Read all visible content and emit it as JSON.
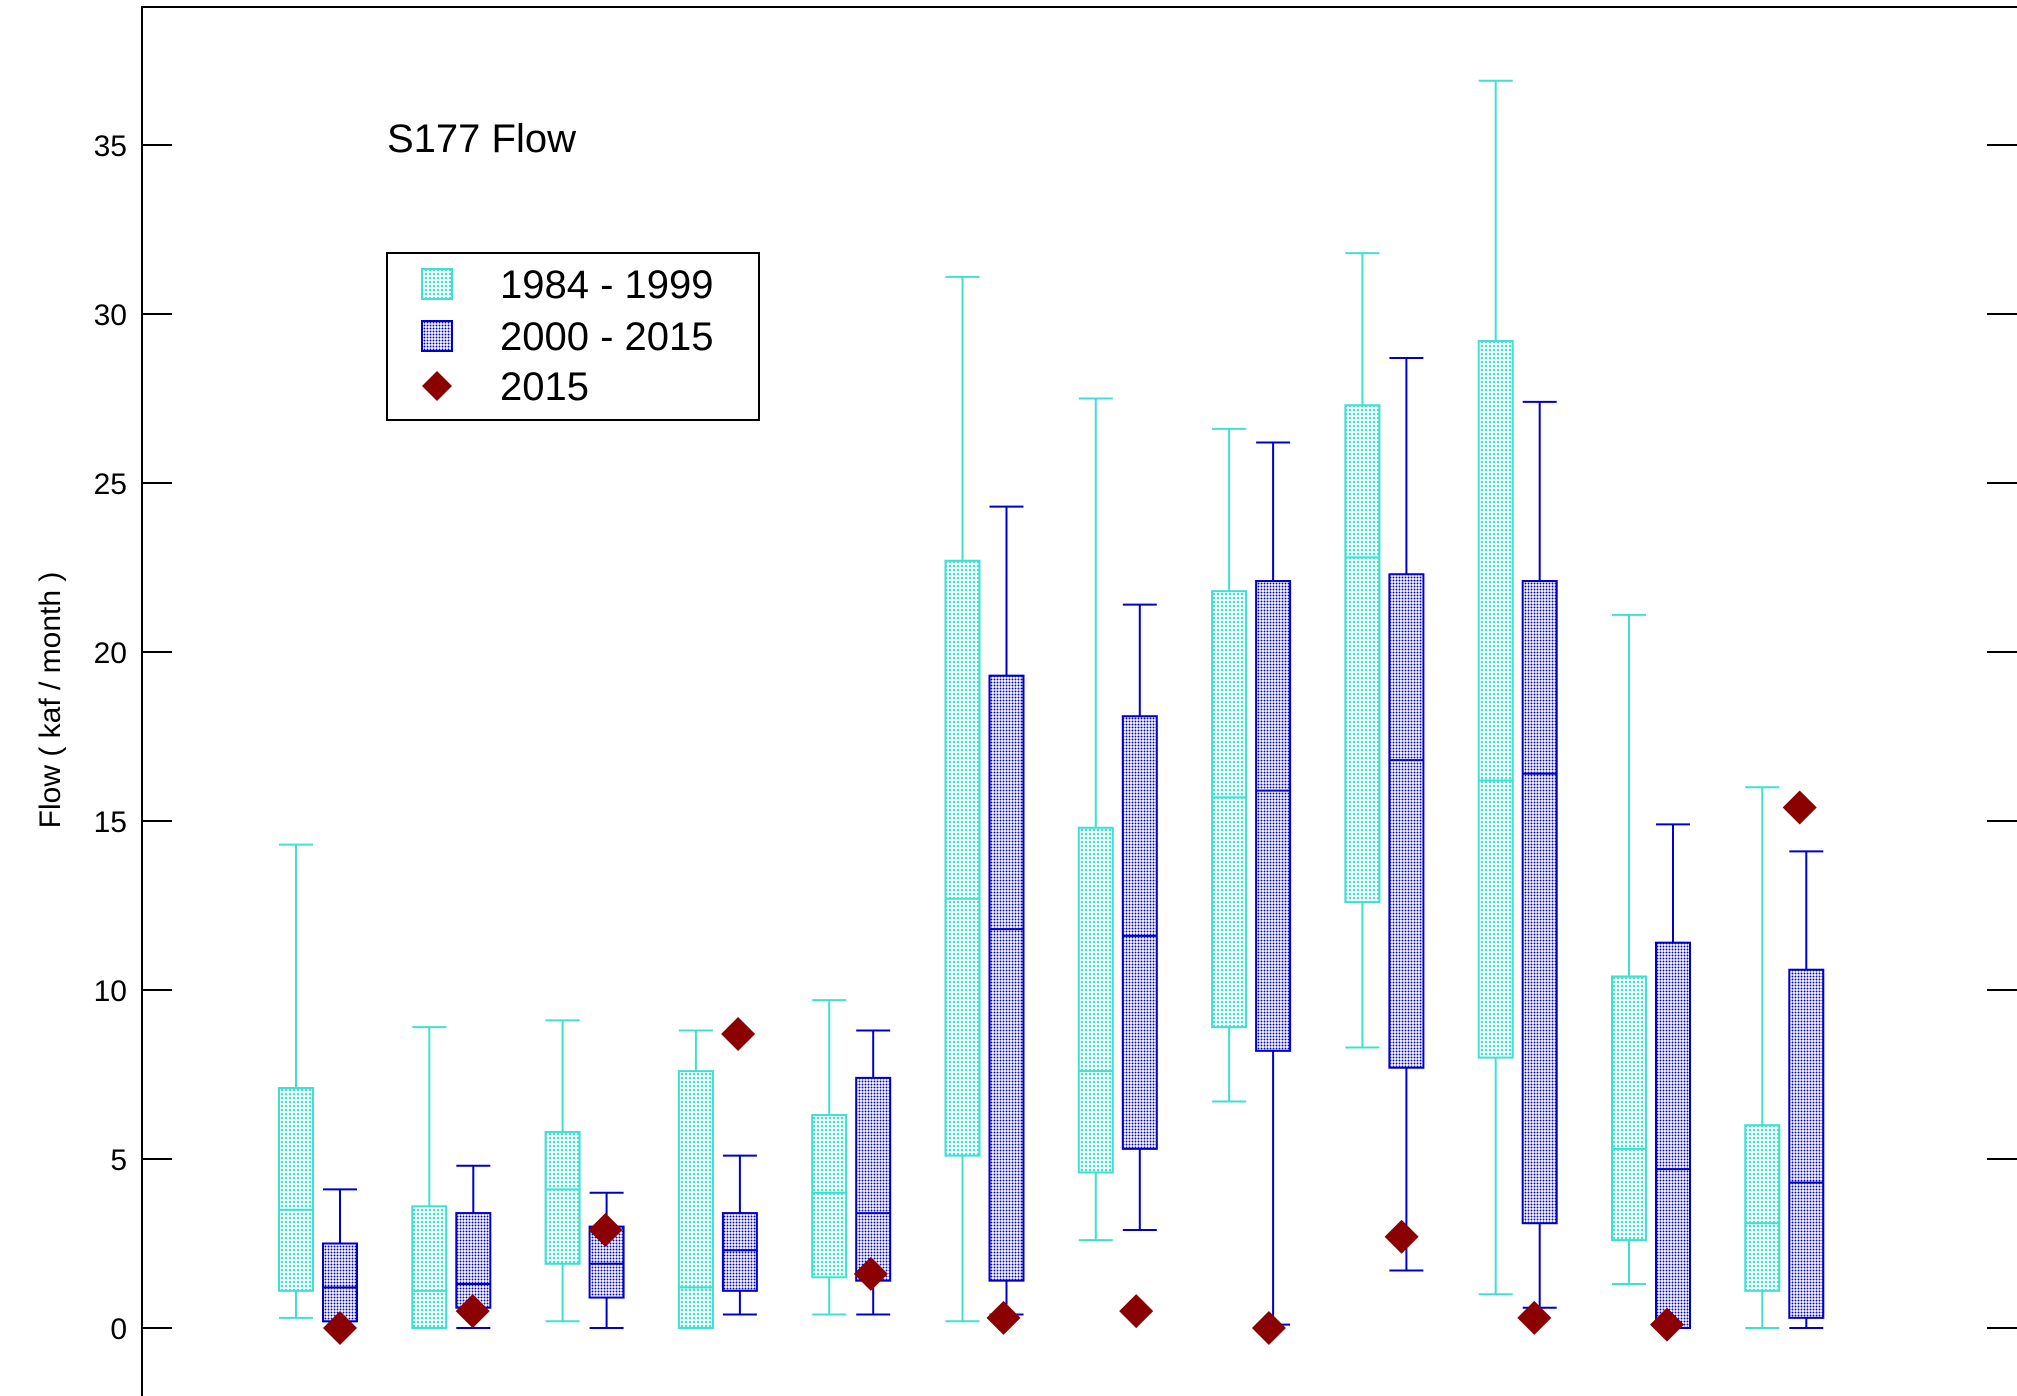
{
  "chart_data": {
    "type": "box",
    "title": "S177 Flow",
    "ylabel": "Flow ( kaf / month )",
    "xlabel": "",
    "ylim": [
      -2,
      39
    ],
    "yticks": [
      0,
      5,
      10,
      15,
      20,
      25,
      30,
      35
    ],
    "grid": false,
    "legend_position": "top-left",
    "colors": {
      "series_1984_1999": "#40e0d0",
      "series_2000_2015": "#0000c8",
      "series_2015": "#8b0000",
      "axis": "#000000"
    },
    "series": [
      {
        "name": "1984 - 1999",
        "kind": "box",
        "boxes": [
          {
            "whisker_low": 0.3,
            "q1": 1.1,
            "median": 3.5,
            "q3": 7.1,
            "whisker_high": 14.3
          },
          {
            "whisker_low": 0.0,
            "q1": 0.0,
            "median": 1.1,
            "q3": 3.6,
            "whisker_high": 8.9
          },
          {
            "whisker_low": 0.2,
            "q1": 1.9,
            "median": 4.1,
            "q3": 5.8,
            "whisker_high": 9.1
          },
          {
            "whisker_low": 0.0,
            "q1": 0.0,
            "median": 1.2,
            "q3": 7.6,
            "whisker_high": 8.8
          },
          {
            "whisker_low": 0.4,
            "q1": 1.5,
            "median": 4.0,
            "q3": 6.3,
            "whisker_high": 9.7
          },
          {
            "whisker_low": 0.2,
            "q1": 5.1,
            "median": 12.7,
            "q3": 22.7,
            "whisker_high": 31.1
          },
          {
            "whisker_low": 2.6,
            "q1": 4.6,
            "median": 7.6,
            "q3": 14.8,
            "whisker_high": 27.5
          },
          {
            "whisker_low": 6.7,
            "q1": 8.9,
            "median": 15.7,
            "q3": 21.8,
            "whisker_high": 26.6
          },
          {
            "whisker_low": 8.3,
            "q1": 12.6,
            "median": 22.8,
            "q3": 27.3,
            "whisker_high": 31.8
          },
          {
            "whisker_low": 1.0,
            "q1": 8.0,
            "median": 16.2,
            "q3": 29.2,
            "whisker_high": 36.9
          },
          {
            "whisker_low": 1.3,
            "q1": 2.6,
            "median": 5.3,
            "q3": 10.4,
            "whisker_high": 21.1
          },
          {
            "whisker_low": 0.0,
            "q1": 1.1,
            "median": 3.1,
            "q3": 6.0,
            "whisker_high": 16.0
          }
        ]
      },
      {
        "name": "2000 - 2015",
        "kind": "box",
        "boxes": [
          {
            "whisker_low": 0.2,
            "q1": 0.2,
            "median": 1.2,
            "q3": 2.5,
            "whisker_high": 4.1
          },
          {
            "whisker_low": 0.0,
            "q1": 0.6,
            "median": 1.3,
            "q3": 3.4,
            "whisker_high": 4.8
          },
          {
            "whisker_low": 0.0,
            "q1": 0.9,
            "median": 1.9,
            "q3": 3.0,
            "whisker_high": 4.0
          },
          {
            "whisker_low": 0.4,
            "q1": 1.1,
            "median": 2.3,
            "q3": 3.4,
            "whisker_high": 5.1
          },
          {
            "whisker_low": 0.4,
            "q1": 1.4,
            "median": 3.4,
            "q3": 7.4,
            "whisker_high": 8.8
          },
          {
            "whisker_low": 0.4,
            "q1": 1.4,
            "median": 11.8,
            "q3": 19.3,
            "whisker_high": 24.3
          },
          {
            "whisker_low": 2.9,
            "q1": 5.3,
            "median": 11.6,
            "q3": 18.1,
            "whisker_high": 21.4
          },
          {
            "whisker_low": 0.1,
            "q1": 8.2,
            "median": 15.9,
            "q3": 22.1,
            "whisker_high": 26.2
          },
          {
            "whisker_low": 1.7,
            "q1": 7.7,
            "median": 16.8,
            "q3": 22.3,
            "whisker_high": 28.7
          },
          {
            "whisker_low": 0.6,
            "q1": 3.1,
            "median": 16.4,
            "q3": 22.1,
            "whisker_high": 27.4
          },
          {
            "whisker_low": 0.0,
            "q1": 0.0,
            "median": 4.7,
            "q3": 11.4,
            "whisker_high": 14.9
          },
          {
            "whisker_low": 0.0,
            "q1": 0.3,
            "median": 4.3,
            "q3": 10.6,
            "whisker_high": 14.1
          }
        ]
      },
      {
        "name": "2015",
        "kind": "point",
        "values": [
          0.0,
          0.5,
          2.9,
          8.7,
          1.6,
          0.3,
          0.5,
          0.0,
          2.7,
          0.3,
          0.1,
          15.4
        ]
      }
    ]
  }
}
